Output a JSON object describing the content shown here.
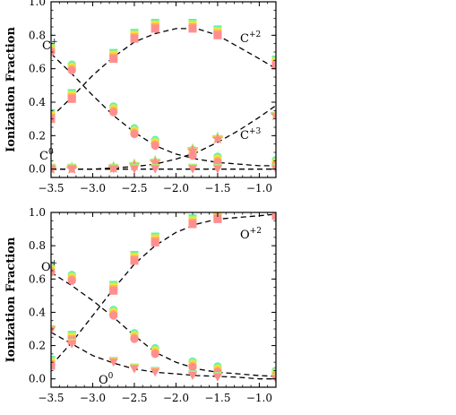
{
  "chart_data": [
    {
      "type": "scatter",
      "ylabel": "Ionization Fraction",
      "xlim": [
        -3.5,
        -0.8
      ],
      "ylim": [
        -0.05,
        1.0
      ],
      "xticks": [
        "−3.5",
        "−3.0",
        "−2.5",
        "−2.0",
        "−1.5",
        "−1.0"
      ],
      "yticks": [
        "0.0",
        "0.2",
        "0.4",
        "0.6",
        "0.8",
        "1.0"
      ],
      "annotations": [
        {
          "base": "C",
          "sup": "+"
        },
        {
          "base": "C",
          "sup": "+2"
        },
        {
          "base": "C",
          "sup": "+3"
        },
        {
          "base": "C",
          "sup": "0"
        }
      ],
      "model_curves": [
        {
          "x": [
            -3.5,
            -3.25,
            -3.0,
            -2.75,
            -2.5,
            -2.25,
            -2.0,
            -1.75,
            -1.5,
            -1.25,
            -1.0,
            -0.8
          ],
          "y": [
            0.69,
            0.57,
            0.44,
            0.32,
            0.22,
            0.14,
            0.09,
            0.06,
            0.04,
            0.03,
            0.02,
            0.02
          ]
        },
        {
          "x": [
            -3.5,
            -3.25,
            -3.0,
            -2.75,
            -2.5,
            -2.25,
            -2.0,
            -1.75,
            -1.5,
            -1.25,
            -1.0,
            -0.8
          ],
          "y": [
            0.31,
            0.43,
            0.56,
            0.67,
            0.76,
            0.81,
            0.84,
            0.84,
            0.8,
            0.73,
            0.66,
            0.6
          ]
        },
        {
          "x": [
            -3.5,
            -3.0,
            -2.5,
            -2.25,
            -2.0,
            -1.75,
            -1.5,
            -1.25,
            -1.0,
            -0.8
          ],
          "y": [
            0.0,
            0.0,
            0.015,
            0.03,
            0.06,
            0.1,
            0.16,
            0.23,
            0.31,
            0.38
          ]
        },
        {
          "x": [
            -3.5,
            -3.0,
            -2.5,
            -2.0,
            -1.5,
            -1.0,
            -0.8
          ],
          "y": [
            0.0,
            0.0,
            0.0,
            0.0,
            0.0,
            0.0,
            0.0
          ]
        }
      ],
      "markers": [
        {
          "shape": "circle",
          "x": [
            -3.5,
            -3.25,
            -2.75,
            -2.5,
            -2.25,
            -1.8,
            -1.5,
            -0.8
          ],
          "y": [
            0.7,
            0.59,
            0.34,
            0.21,
            0.14,
            0.08,
            0.04,
            0.02
          ]
        },
        {
          "shape": "square",
          "x": [
            -3.5,
            -3.25,
            -2.75,
            -2.5,
            -2.25,
            -1.8,
            -1.5,
            -0.8
          ],
          "y": [
            0.3,
            0.42,
            0.66,
            0.78,
            0.84,
            0.84,
            0.8,
            0.62
          ]
        },
        {
          "shape": "star",
          "x": [
            -3.5,
            -3.25,
            -2.75,
            -2.5,
            -2.25,
            -1.8,
            -1.5,
            -0.8
          ],
          "y": [
            0.0,
            0.0,
            0.005,
            0.02,
            0.04,
            0.11,
            0.18,
            0.32
          ]
        },
        {
          "shape": "triangle",
          "x": [
            -3.5,
            -3.25,
            -2.75,
            -2.5,
            -2.25,
            -1.8,
            -1.5,
            -0.8
          ],
          "y": [
            0.0,
            0.0,
            0.0,
            0.0,
            0.0,
            0.0,
            0.0,
            0.0
          ]
        }
      ]
    },
    {
      "type": "scatter",
      "ylabel": "Ionization Fraction",
      "xlim": [
        -3.5,
        -0.8
      ],
      "ylim": [
        -0.05,
        1.0
      ],
      "xticks": [
        "−3.5",
        "−3.0",
        "−2.5",
        "−2.0",
        "−1.5",
        "−1.0"
      ],
      "yticks": [
        "0.0",
        "0.2",
        "0.4",
        "0.6",
        "0.8",
        "1.0"
      ],
      "annotations": [
        {
          "base": "O",
          "sup": "+"
        },
        {
          "base": "O",
          "sup": "+2"
        },
        {
          "base": "O",
          "sup": "0"
        }
      ],
      "model_curves": [
        {
          "x": [
            -3.5,
            -3.25,
            -3.0,
            -2.75,
            -2.5,
            -2.25,
            -2.0,
            -1.75,
            -1.5,
            -1.25,
            -1.0,
            -0.8
          ],
          "y": [
            0.64,
            0.56,
            0.47,
            0.37,
            0.26,
            0.16,
            0.1,
            0.06,
            0.04,
            0.03,
            0.02,
            0.015
          ]
        },
        {
          "x": [
            -3.5,
            -3.25,
            -3.0,
            -2.75,
            -2.5,
            -2.25,
            -2.0,
            -1.75,
            -1.5,
            -1.25,
            -1.0,
            -0.8
          ],
          "y": [
            0.08,
            0.22,
            0.38,
            0.54,
            0.69,
            0.8,
            0.88,
            0.93,
            0.96,
            0.97,
            0.98,
            0.99
          ]
        },
        {
          "x": [
            -3.5,
            -3.25,
            -3.0,
            -2.75,
            -2.5,
            -2.25,
            -2.0,
            -1.75,
            -1.5,
            -1.25,
            -1.0,
            -0.8
          ],
          "y": [
            0.28,
            0.21,
            0.14,
            0.095,
            0.06,
            0.04,
            0.03,
            0.02,
            0.015,
            0.01,
            0.0,
            0.0
          ]
        }
      ],
      "markers": [
        {
          "shape": "circle",
          "x": [
            -3.5,
            -3.25,
            -2.75,
            -2.5,
            -2.25,
            -1.8,
            -1.5,
            -0.8
          ],
          "y": [
            0.64,
            0.59,
            0.38,
            0.24,
            0.15,
            0.07,
            0.04,
            0.015
          ]
        },
        {
          "shape": "square",
          "x": [
            -3.5,
            -3.25,
            -2.75,
            -2.5,
            -2.25,
            -1.8,
            -1.5,
            -0.8
          ],
          "y": [
            0.08,
            0.23,
            0.53,
            0.71,
            0.82,
            0.93,
            0.96,
            0.98
          ]
        },
        {
          "shape": "triangle",
          "x": [
            -3.5,
            -3.25,
            -2.75,
            -2.5,
            -2.25,
            -1.8,
            -1.5,
            -0.8
          ],
          "y": [
            0.29,
            0.21,
            0.1,
            0.06,
            0.04,
            0.02,
            0.01,
            0.0
          ]
        }
      ]
    }
  ],
  "marker_palette": [
    "#00e5ff",
    "#5cf0b0",
    "#b2f070",
    "#ffe030",
    "#ffb060",
    "#ff8f8f",
    "#f07878"
  ]
}
